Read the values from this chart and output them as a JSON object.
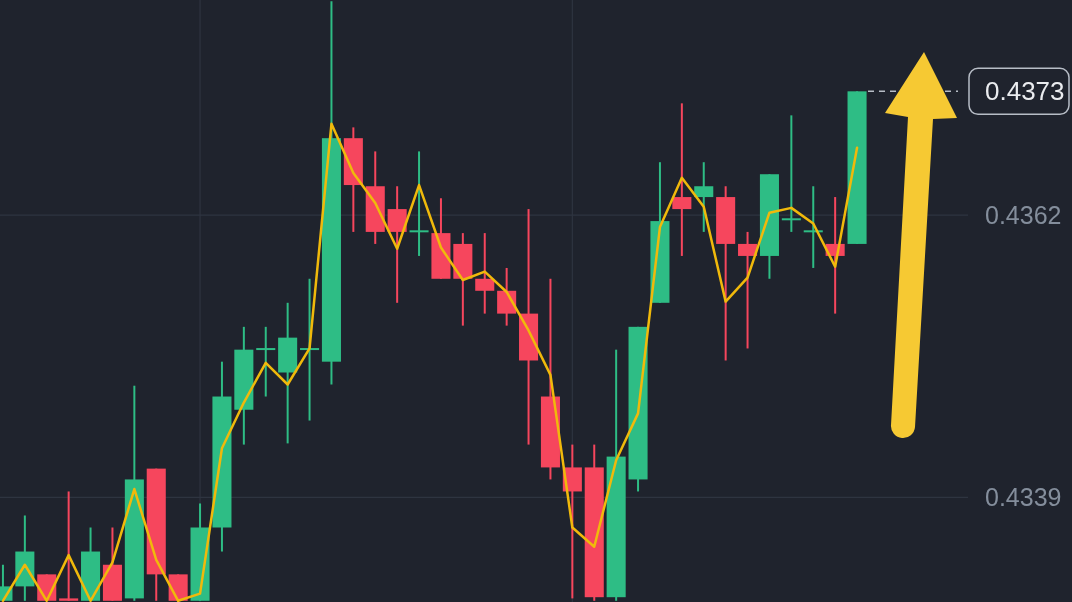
{
  "chart_data": {
    "type": "candlestick",
    "categories": [
      null,
      null,
      null,
      null,
      null,
      null,
      null,
      null,
      null,
      null,
      null,
      null,
      null,
      null,
      null,
      null,
      null,
      null,
      null,
      null,
      null,
      null,
      null,
      null,
      null,
      null,
      null,
      null,
      null,
      null,
      null,
      null,
      null,
      null,
      null,
      null,
      null,
      null,
      null,
      null
    ],
    "ohlc": [
      [
        0.43303,
        0.43333,
        0.43303,
        0.43315
      ],
      [
        0.43315,
        0.43374,
        0.43303,
        0.43344
      ],
      [
        0.43325,
        0.43325,
        0.43303,
        0.43303
      ],
      [
        0.43305,
        0.43394,
        0.43303,
        0.43303
      ],
      [
        0.43303,
        0.43364,
        0.43303,
        0.43344
      ],
      [
        0.43333,
        0.43364,
        0.43303,
        0.43303
      ],
      [
        0.43305,
        0.43482,
        0.43303,
        0.43404
      ],
      [
        0.43413,
        0.43413,
        0.43303,
        0.43325
      ],
      [
        0.43325,
        0.43325,
        0.43303,
        0.43303
      ],
      [
        0.43303,
        0.43384,
        0.43303,
        0.43364
      ],
      [
        0.43364,
        0.43502,
        0.43344,
        0.43473
      ],
      [
        0.43462,
        0.43531,
        0.43433,
        0.43512
      ],
      [
        0.43512,
        0.43531,
        0.43473,
        0.43513
      ],
      [
        0.43493,
        0.43551,
        0.43434,
        0.43522
      ],
      [
        0.43512,
        0.43571,
        0.43453,
        0.43513
      ],
      [
        0.43502,
        0.43802,
        0.43483,
        0.43688
      ],
      [
        0.43688,
        0.43697,
        0.4361,
        0.43649
      ],
      [
        0.43648,
        0.43677,
        0.436,
        0.4361
      ],
      [
        0.43629,
        0.43648,
        0.43551,
        0.4361
      ],
      [
        0.4361,
        0.43677,
        0.4359,
        0.43611
      ],
      [
        0.43609,
        0.43638,
        0.43571,
        0.43571
      ],
      [
        0.436,
        0.43609,
        0.43532,
        0.43571
      ],
      [
        0.43571,
        0.43609,
        0.43542,
        0.43561
      ],
      [
        0.43561,
        0.4358,
        0.43532,
        0.43542
      ],
      [
        0.43542,
        0.43629,
        0.43433,
        0.43503
      ],
      [
        0.43473,
        0.43571,
        0.43404,
        0.43414
      ],
      [
        0.43414,
        0.43433,
        0.43305,
        0.43394
      ],
      [
        0.43414,
        0.43433,
        0.43303,
        0.43306
      ],
      [
        0.43306,
        0.43512,
        0.43303,
        0.43423
      ],
      [
        0.43404,
        0.43531,
        0.43394,
        0.43531
      ],
      [
        0.43551,
        0.43668,
        0.43551,
        0.43619
      ],
      [
        0.43639,
        0.43717,
        0.4359,
        0.43629
      ],
      [
        0.43639,
        0.43668,
        0.4361,
        0.43648
      ],
      [
        0.43639,
        0.43648,
        0.43503,
        0.436
      ],
      [
        0.436,
        0.4361,
        0.43513,
        0.4359
      ],
      [
        0.4359,
        0.43658,
        0.43571,
        0.43658
      ],
      [
        0.4362,
        0.43707,
        0.4361,
        0.43621
      ],
      [
        0.4361,
        0.43648,
        0.4358,
        0.43611
      ],
      [
        0.436,
        0.43639,
        0.43542,
        0.4359
      ],
      [
        0.436,
        0.43727,
        0.436,
        0.43727
      ]
    ],
    "colors": [
      "#2ebd85",
      "#2ebd85",
      "#f6465d",
      "#f6465d",
      "#2ebd85",
      "#f6465d",
      "#2ebd85",
      "#f6465d",
      "#f6465d",
      "#2ebd85",
      "#2ebd85",
      "#2ebd85",
      "#2ebd85",
      "#2ebd85",
      "#2ebd85",
      "#2ebd85",
      "#f6465d",
      "#f6465d",
      "#f6465d",
      "#2ebd85",
      "#f6465d",
      "#f6465d",
      "#f6465d",
      "#f6465d",
      "#f6465d",
      "#f6465d",
      "#f6465d",
      "#f6465d",
      "#2ebd85",
      "#2ebd85",
      "#2ebd85",
      "#f6465d",
      "#2ebd85",
      "#f6465d",
      "#f6465d",
      "#2ebd85",
      "#2ebd85",
      "#2ebd85",
      "#f6465d",
      "#2ebd85"
    ],
    "series": [
      {
        "type": "line",
        "color": "#f0b90b",
        "values": [
          0.43303,
          0.43333,
          0.43303,
          0.43341,
          0.43303,
          0.43335,
          0.43396,
          0.43337,
          0.43303,
          0.43309,
          0.4343,
          0.43468,
          0.43501,
          0.43483,
          0.43513,
          0.437,
          0.43659,
          0.43634,
          0.43596,
          0.43649,
          0.43597,
          0.4357,
          0.43577,
          0.4356,
          0.43528,
          0.43491,
          0.43364,
          0.43348,
          0.4342,
          0.43459,
          0.43614,
          0.43655,
          0.43631,
          0.43552,
          0.43572,
          0.43626,
          0.4363,
          0.43617,
          0.43581,
          0.4368
        ]
      }
    ],
    "ylim": [
      0.43302,
      0.43803
    ],
    "yticks": [
      {
        "value": 0.43624,
        "label": "0.4362"
      },
      {
        "value": 0.43389,
        "label": "0.4339"
      }
    ],
    "grid": "y",
    "tick_labels": "y",
    "line_style": "solid",
    "ref_lines": [
      {
        "axis": "y",
        "value": 0.43727,
        "label": "0.4373",
        "color": "#b7bdc6",
        "line_style": "dashed"
      }
    ]
  }
}
